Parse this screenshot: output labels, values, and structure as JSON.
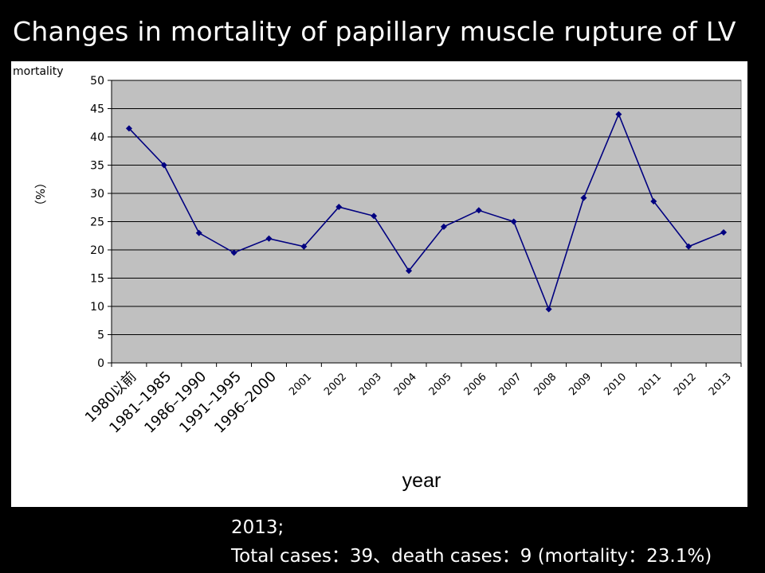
{
  "title": "Changes in mortality of papillary muscle rupture of LV",
  "chart_data": {
    "type": "line",
    "categories": [
      "1980以前",
      "1981–1985",
      "1986–1990",
      "1991–1995",
      "1996–2000",
      "2001",
      "2002",
      "2003",
      "2004",
      "2005",
      "2006",
      "2007",
      "2008",
      "2009",
      "2010",
      "2011",
      "2012",
      "2013"
    ],
    "series": [
      {
        "values": [
          41.5,
          35,
          23,
          19.5,
          22,
          20.6,
          27.6,
          26,
          16.3,
          24.1,
          27,
          25,
          9.5,
          29.2,
          44,
          28.6,
          20.6,
          23.1
        ]
      }
    ],
    "ylabel_top": "mortality",
    "ylabel_side": "（%）",
    "xlabel": "year",
    "ylim": [
      0,
      50
    ],
    "yticks": [
      0,
      5,
      10,
      15,
      20,
      25,
      30,
      35,
      40,
      45,
      50
    ],
    "grid": true,
    "legend": "none",
    "colors": {
      "line": "#000080",
      "plot_bg": "#c0c0c0",
      "grid": "#000000"
    }
  },
  "footer": {
    "line1": "2013;",
    "line2": "Total cases：39、death cases：9 (mortality：23.1%)"
  }
}
